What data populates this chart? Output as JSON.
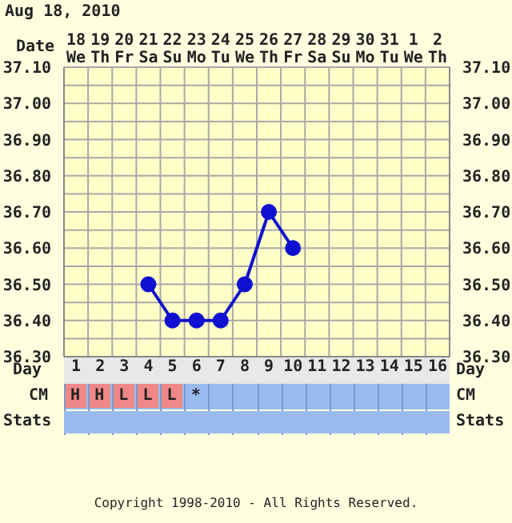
{
  "chart_data": {
    "type": "line",
    "title": "Aug 18, 2010",
    "x": [
      4,
      5,
      6,
      7,
      8,
      9,
      10
    ],
    "series": [
      {
        "color": "#1010d0",
        "values": [
          36.5,
          36.4,
          36.4,
          36.4,
          36.5,
          36.7,
          36.6
        ]
      }
    ],
    "xlabel": "Day",
    "xlim": [
      0.5,
      16.5
    ],
    "xticks": [
      1,
      2,
      3,
      4,
      5,
      6,
      7,
      8,
      9,
      10,
      11,
      12,
      13,
      14,
      15,
      16
    ],
    "x2label": "Date",
    "x2lim": [
      "2010-08-17T12:00",
      "2010-09-02T12:00"
    ],
    "x2ticks": [
      {
        "value": "2010-08-18",
        "label": "18 We"
      },
      {
        "value": "2010-08-19",
        "label": "19 Th"
      },
      {
        "value": "2010-08-20",
        "label": "20 Fr"
      },
      {
        "value": "2010-08-21",
        "label": "21 Sa"
      },
      {
        "value": "2010-08-22",
        "label": "22 Su"
      },
      {
        "value": "2010-08-23",
        "label": "23 Mo"
      },
      {
        "value": "2010-08-24",
        "label": "24 Tu"
      },
      {
        "value": "2010-08-25",
        "label": "25 We"
      },
      {
        "value": "2010-08-26",
        "label": "26 Th"
      },
      {
        "value": "2010-08-27",
        "label": "27 Fr"
      },
      {
        "value": "2010-08-28",
        "label": "28 Sa"
      },
      {
        "value": "2010-08-29",
        "label": "29 Su"
      },
      {
        "value": "2010-08-30",
        "label": "30 Mo"
      },
      {
        "value": "2010-08-31",
        "label": "31 Tu"
      },
      {
        "value": "2010-09-01",
        "label": "1 We"
      },
      {
        "value": "2010-09-02",
        "label": "2 Th"
      }
    ],
    "ylim": [
      36.3,
      37.1
    ],
    "yticks": [
      {
        "value": 36.3,
        "label": "36.30"
      },
      {
        "value": 36.35,
        "label": null
      },
      {
        "value": 36.4,
        "label": "36.40"
      },
      {
        "value": 36.45,
        "label": null
      },
      {
        "value": 36.5,
        "label": "36.50"
      },
      {
        "value": 36.55,
        "label": null
      },
      {
        "value": 36.6,
        "label": "36.60"
      },
      {
        "value": 36.65,
        "label": null
      },
      {
        "value": 36.7,
        "label": "36.70"
      },
      {
        "value": 36.75,
        "label": null
      },
      {
        "value": 36.8,
        "label": "36.80"
      },
      {
        "value": 36.85,
        "label": null
      },
      {
        "value": 36.9,
        "label": "36.90"
      },
      {
        "value": 36.95,
        "label": null
      },
      {
        "value": 37.0,
        "label": "37.00"
      },
      {
        "value": 37.05,
        "label": null
      },
      {
        "value": 37.1,
        "label": "37.10"
      }
    ],
    "y2lim": [
      36.3,
      37.1
    ],
    "y2ticks": [
      {
        "value": 36.3,
        "label": "36.30"
      },
      {
        "value": 36.35,
        "label": null
      },
      {
        "value": 36.4,
        "label": "36.40"
      },
      {
        "value": 36.45,
        "label": null
      },
      {
        "value": 36.5,
        "label": "36.50"
      },
      {
        "value": 36.55,
        "label": null
      },
      {
        "value": 36.6,
        "label": "36.60"
      },
      {
        "value": 36.65,
        "label": null
      },
      {
        "value": 36.7,
        "label": "36.70"
      },
      {
        "value": 36.75,
        "label": null
      },
      {
        "value": 36.8,
        "label": "36.80"
      },
      {
        "value": 36.85,
        "label": null
      },
      {
        "value": 36.9,
        "label": "36.90"
      },
      {
        "value": 36.95,
        "label": null
      },
      {
        "value": 37.0,
        "label": "37.00"
      },
      {
        "value": 37.05,
        "label": null
      },
      {
        "value": 37.1,
        "label": "37.10"
      }
    ],
    "grid": true,
    "marker": "circle",
    "line_style": "solid",
    "annotations": [
      "CM",
      "H",
      "H",
      "L",
      "L",
      "L",
      "*",
      "Stats",
      "Copyright 1998-2010 - All Rights Reserved."
    ]
  }
}
